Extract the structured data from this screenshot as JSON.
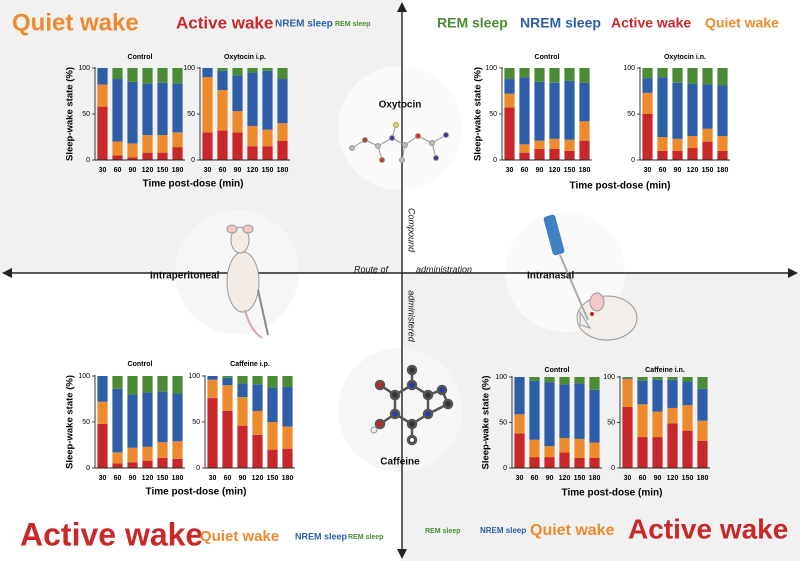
{
  "labels": {
    "route_left": "Route of",
    "route_right": "administration",
    "compound_top": "Compound",
    "compound_bottom": "administered",
    "intraperitoneal": "Intraperitoneal",
    "intranasal": "Intranasal",
    "oxytocin": "Oxytocin",
    "caffeine": "Caffeine"
  },
  "chart_data": [
    {
      "type": "stacked_bar",
      "xlabel": "Time post-dose (min)",
      "ylabel": "Sleep-wake state (%)",
      "categories": [
        30,
        60,
        90,
        120,
        150,
        180
      ],
      "ylim": [
        0,
        100
      ],
      "yticks": [
        0,
        50,
        100
      ],
      "series": [
        {
          "name": "Active wake",
          "color": "#c8282a"
        },
        {
          "name": "Quiet wake",
          "color": "#ee8a2e"
        },
        {
          "name": "NREM sleep",
          "color": "#2f5ea8"
        },
        {
          "name": "REM sleep",
          "color": "#4b8b35"
        }
      ],
      "charts": [
        {
          "title": "Control",
          "values": [
            [
              58,
              5,
              3,
              8,
              8,
              14
            ],
            [
              24,
              15,
              15,
              19,
              19,
              16
            ],
            [
              18,
              68,
              67,
              56,
              57,
              53
            ],
            [
              0,
              12,
              15,
              17,
              16,
              17
            ]
          ]
        },
        {
          "title": "Oxytocin i.p.",
          "values": [
            [
              30,
              32,
              30,
              15,
              15,
              21
            ],
            [
              60,
              44,
              23,
              22,
              18,
              19
            ],
            [
              10,
              21,
              39,
              58,
              64,
              48
            ],
            [
              0,
              3,
              8,
              5,
              3,
              12
            ]
          ]
        }
      ]
    },
    {
      "type": "stacked_bar",
      "xlabel": "Time post-dose (min)",
      "ylabel": "Sleep-wake state (%)",
      "categories": [
        30,
        60,
        90,
        120,
        150,
        180
      ],
      "ylim": [
        0,
        100
      ],
      "yticks": [
        0,
        50,
        100
      ],
      "series": [
        {
          "name": "Active wake",
          "color": "#c8282a"
        },
        {
          "name": "Quiet wake",
          "color": "#ee8a2e"
        },
        {
          "name": "NREM sleep",
          "color": "#2f5ea8"
        },
        {
          "name": "REM sleep",
          "color": "#4b8b35"
        }
      ],
      "charts": [
        {
          "title": "Control",
          "values": [
            [
              57,
              8,
              12,
              12,
              10,
              21
            ],
            [
              15,
              9,
              9,
              11,
              12,
              21
            ],
            [
              16,
              73,
              64,
              61,
              64,
              42
            ],
            [
              12,
              10,
              15,
              16,
              14,
              16
            ]
          ]
        },
        {
          "title": "Oxytocin i.n.",
          "values": [
            [
              50,
              10,
              10,
              13,
              20,
              10
            ],
            [
              23,
              15,
              13,
              13,
              14,
              16
            ],
            [
              16,
              65,
              61,
              57,
              48,
              55
            ],
            [
              11,
              10,
              16,
              17,
              18,
              19
            ]
          ]
        }
      ]
    },
    {
      "type": "stacked_bar",
      "xlabel": "Time post-dose (min)",
      "ylabel": "Sleep-wake state (%)",
      "categories": [
        30,
        60,
        90,
        120,
        150,
        180
      ],
      "ylim": [
        0,
        100
      ],
      "yticks": [
        0,
        50,
        100
      ],
      "series": [
        {
          "name": "Active wake",
          "color": "#c8282a"
        },
        {
          "name": "Quiet wake",
          "color": "#ee8a2e"
        },
        {
          "name": "NREM sleep",
          "color": "#2f5ea8"
        },
        {
          "name": "REM sleep",
          "color": "#4b8b35"
        }
      ],
      "charts": [
        {
          "title": "Control",
          "values": [
            [
              48,
              5,
              6,
              8,
              11,
              10
            ],
            [
              24,
              12,
              16,
              15,
              17,
              19
            ],
            [
              28,
              69,
              58,
              59,
              55,
              52
            ],
            [
              0,
              14,
              20,
              18,
              17,
              19
            ]
          ]
        },
        {
          "title": "Caffeine i.p.",
          "values": [
            [
              76,
              62,
              46,
              36,
              20,
              21
            ],
            [
              20,
              28,
              31,
              26,
              30,
              24
            ],
            [
              4,
              8,
              15,
              29,
              37,
              43
            ],
            [
              0,
              2,
              8,
              9,
              13,
              12
            ]
          ]
        }
      ]
    },
    {
      "type": "stacked_bar",
      "xlabel": "Time post-dose (min)",
      "ylabel": "Sleep-wake state (%)",
      "categories": [
        30,
        60,
        90,
        120,
        150,
        180
      ],
      "ylim": [
        0,
        100
      ],
      "yticks": [
        0,
        50,
        100
      ],
      "series": [
        {
          "name": "Active wake",
          "color": "#c8282a"
        },
        {
          "name": "Quiet wake",
          "color": "#ee8a2e"
        },
        {
          "name": "NREM sleep",
          "color": "#2f5ea8"
        },
        {
          "name": "REM sleep",
          "color": "#4b8b35"
        }
      ],
      "charts": [
        {
          "title": "Control",
          "values": [
            [
              38,
              12,
              12,
              17,
              11,
              11
            ],
            [
              21,
              19,
              12,
              16,
              21,
              17
            ],
            [
              41,
              65,
              70,
              59,
              61,
              58
            ],
            [
              0,
              4,
              6,
              8,
              7,
              14
            ]
          ]
        },
        {
          "title": "Caffeine i.n.",
          "values": [
            [
              67,
              34,
              34,
              49,
              41,
              30
            ],
            [
              31,
              36,
              28,
              17,
              28,
              22
            ],
            [
              1,
              26,
              35,
              31,
              26,
              35
            ],
            [
              1,
              4,
              3,
              3,
              5,
              13
            ]
          ]
        }
      ]
    }
  ]
}
